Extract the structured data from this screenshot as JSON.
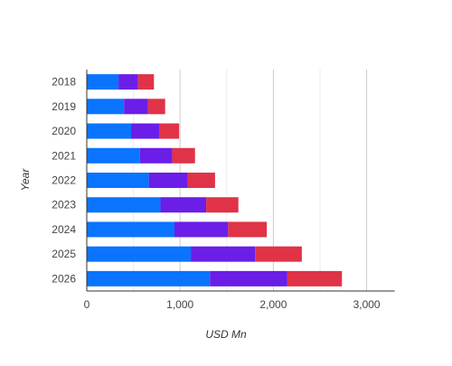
{
  "chart_data": {
    "type": "bar",
    "orientation": "horizontal",
    "stacked": true,
    "categories": [
      "2018",
      "2019",
      "2020",
      "2021",
      "2022",
      "2023",
      "2024",
      "2025",
      "2026"
    ],
    "series": [
      {
        "color": "#0a74ff",
        "values": [
          340,
          400,
          475,
          570,
          665,
          790,
          940,
          1115,
          1320
        ]
      },
      {
        "color": "#6a1ee8",
        "values": [
          210,
          255,
          300,
          345,
          415,
          490,
          575,
          690,
          830
        ]
      },
      {
        "color": "#e03347",
        "values": [
          170,
          185,
          215,
          245,
          295,
          345,
          415,
          500,
          585
        ]
      }
    ],
    "xlabel": "USD Mn",
    "ylabel": "Year",
    "xlim": [
      0,
      3300
    ],
    "xticks": [
      0,
      1000,
      2000,
      3000
    ],
    "xtick_labels": [
      "0",
      "1,000",
      "2,000",
      "3,000"
    ],
    "minor_gridlines": true,
    "legend": "none"
  }
}
